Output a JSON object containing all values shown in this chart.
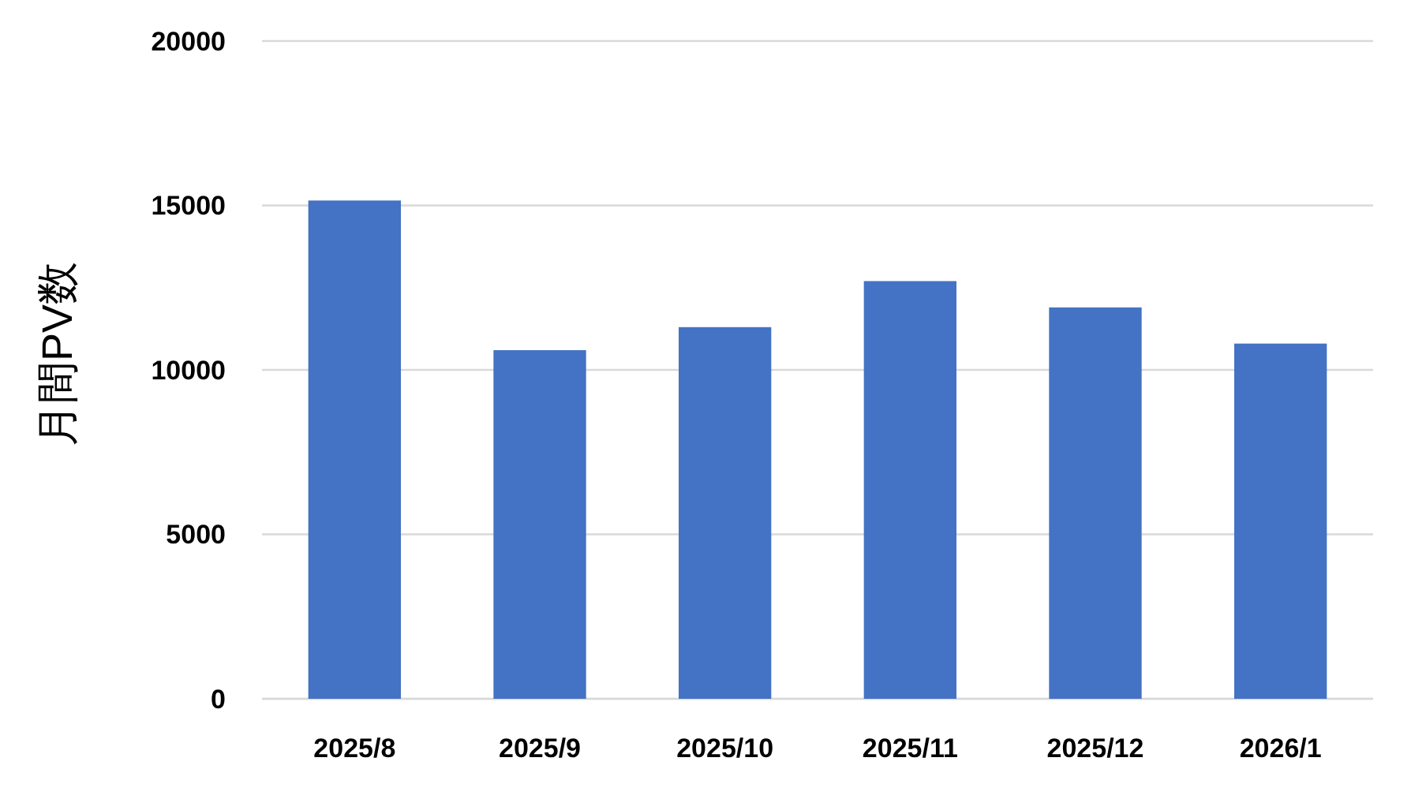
{
  "chart_data": {
    "type": "bar",
    "ylabel": "月間PV数",
    "categories": [
      "2025/8",
      "2025/9",
      "2025/10",
      "2025/11",
      "2025/12",
      "2026/1"
    ],
    "values": [
      15150,
      10600,
      11300,
      12700,
      11900,
      10800
    ],
    "color": "#4472c4",
    "ylim": [
      0,
      20000
    ],
    "yticks": [
      0,
      5000,
      10000,
      15000,
      20000
    ],
    "grid": "y"
  }
}
